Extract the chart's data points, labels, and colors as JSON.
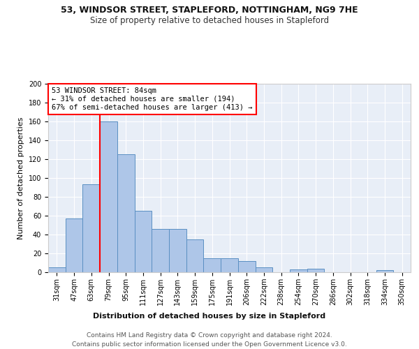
{
  "title1": "53, WINDSOR STREET, STAPLEFORD, NOTTINGHAM, NG9 7HE",
  "title2": "Size of property relative to detached houses in Stapleford",
  "xlabel": "Distribution of detached houses by size in Stapleford",
  "ylabel": "Number of detached properties",
  "categories": [
    "31sqm",
    "47sqm",
    "63sqm",
    "79sqm",
    "95sqm",
    "111sqm",
    "127sqm",
    "143sqm",
    "159sqm",
    "175sqm",
    "191sqm",
    "206sqm",
    "222sqm",
    "238sqm",
    "254sqm",
    "270sqm",
    "286sqm",
    "302sqm",
    "318sqm",
    "334sqm",
    "350sqm"
  ],
  "values": [
    5,
    57,
    93,
    160,
    125,
    65,
    46,
    46,
    35,
    15,
    15,
    12,
    5,
    0,
    3,
    4,
    0,
    0,
    0,
    2,
    0
  ],
  "bar_color": "#aec6e8",
  "bar_edge_color": "#5a8fc2",
  "vline_x_index": 3,
  "vline_color": "red",
  "annotation_text": "53 WINDSOR STREET: 84sqm\n← 31% of detached houses are smaller (194)\n67% of semi-detached houses are larger (413) →",
  "annotation_box_color": "white",
  "annotation_box_edge": "red",
  "ylim": [
    0,
    200
  ],
  "yticks": [
    0,
    20,
    40,
    60,
    80,
    100,
    120,
    140,
    160,
    180,
    200
  ],
  "background_color": "#e8eef7",
  "footer1": "Contains HM Land Registry data © Crown copyright and database right 2024.",
  "footer2": "Contains public sector information licensed under the Open Government Licence v3.0.",
  "title1_fontsize": 9,
  "title2_fontsize": 8.5,
  "xlabel_fontsize": 8,
  "ylabel_fontsize": 8,
  "annotation_fontsize": 7.5,
  "footer_fontsize": 6.5,
  "tick_fontsize": 7
}
